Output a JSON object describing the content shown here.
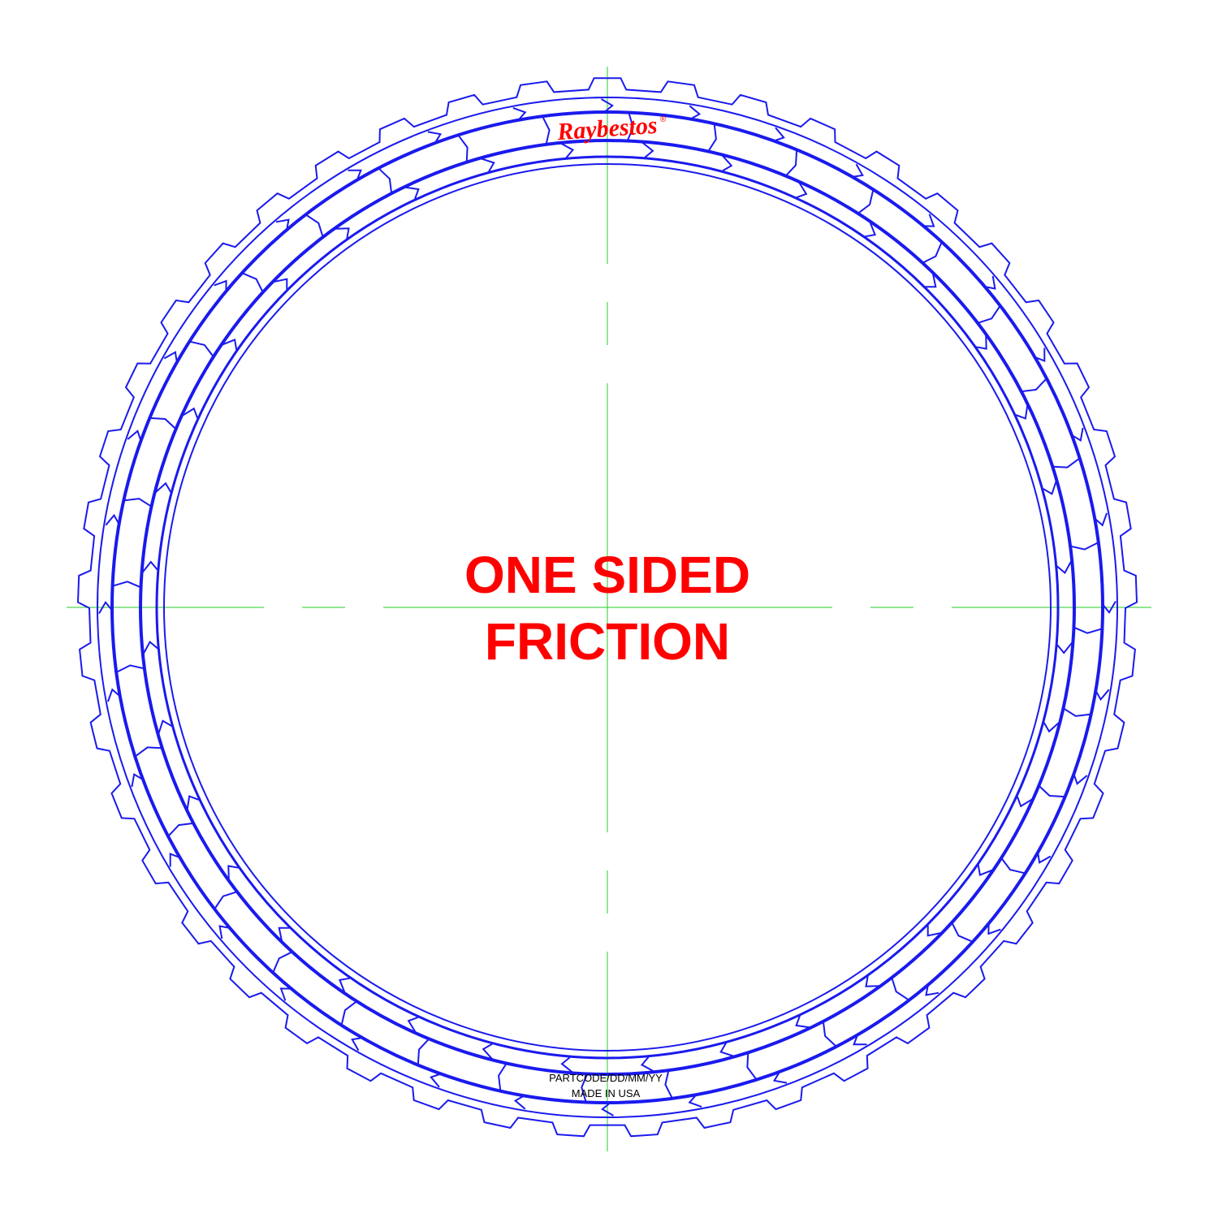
{
  "diagram": {
    "logo_text": "Raybestos",
    "logo_mark": "®",
    "center_label_line1": "ONE SIDED",
    "center_label_line2": "FRICTION",
    "stamp_line1": "PARTCODE/DD/MM/YY",
    "stamp_line2": "MADE IN USA",
    "colors": {
      "outline": "#1a1aee",
      "centerline": "#22cc22",
      "label": "#ff0000",
      "stamp": "#000000"
    },
    "tooth_count": 45,
    "pad_count": 36
  }
}
